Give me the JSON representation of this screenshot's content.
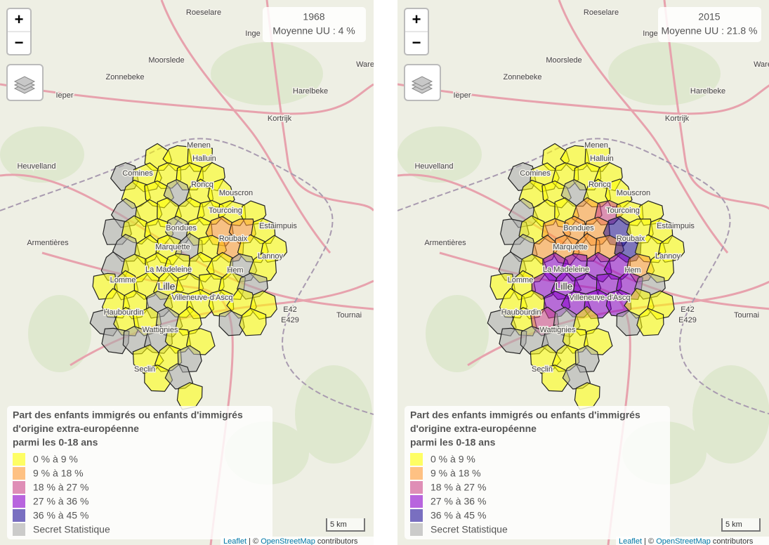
{
  "panels": [
    {
      "year": "1968",
      "average": "Moyenne UU : 4 %"
    },
    {
      "year": "2015",
      "average": "Moyenne UU : 21.8 %"
    }
  ],
  "zoom": {
    "in": "+",
    "out": "−"
  },
  "legend": {
    "title": [
      "Part des enfants immigrés ou enfants d'immigrés",
      "d'origine extra-européenne",
      "parmi les 0-18 ans"
    ],
    "items": [
      {
        "label": "0 % à 9 %",
        "color": "#ffff00"
      },
      {
        "label": "9 % à 18 %",
        "color": "#ff9933"
      },
      {
        "label": "18 % à 27 %",
        "color": "#cc4488"
      },
      {
        "label": "27 % à 36 %",
        "color": "#8a00cc"
      },
      {
        "label": "36 % à 45 %",
        "color": "#22119a"
      },
      {
        "label": "Secret Statistique",
        "color": "#aaaaaa"
      }
    ]
  },
  "scale": "5 km",
  "attribution": {
    "leaflet": "Leaflet",
    "separator": "| ©",
    "osm": "OpenStreetMap",
    "suffix": "contributors"
  },
  "places": [
    "Roeselare",
    "Inge",
    "Moorslede",
    "Zonnebeke",
    "Ieper",
    "Harelbeke",
    "Kortrijk",
    "Ware",
    "Menen",
    "Heuvelland",
    "Comines",
    "Halluin",
    "Roncq",
    "Mouscron",
    "Tourcoing",
    "Estaimpuis",
    "Armentières",
    "Bondues",
    "Roubaix",
    "Marquette",
    "La Madeleine",
    "Hem",
    "Lannoy",
    "Lille",
    "Lomme",
    "Villeneuve-d'Ascq",
    "Haubourdin",
    "Wattignies",
    "Seclin",
    "Tournai",
    "E42",
    "E429"
  ]
}
